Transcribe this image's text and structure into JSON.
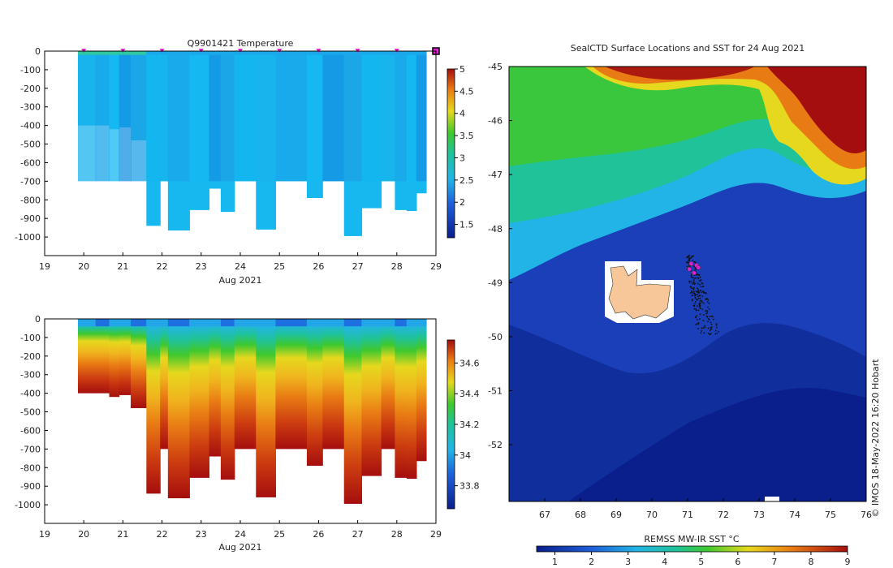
{
  "chart_data": [
    {
      "type": "heatmap",
      "id": "temperature",
      "title": "Q9901421  Temperature",
      "xlabel": "Aug 2021",
      "x_ticks": [
        19,
        20,
        21,
        22,
        23,
        24,
        25,
        26,
        27,
        28,
        29
      ],
      "xlim": [
        19,
        29
      ],
      "y_ticks": [
        0,
        -100,
        -200,
        -300,
        -400,
        -500,
        -600,
        -700,
        -800,
        -900,
        -1000
      ],
      "ylim": [
        -1100,
        0
      ],
      "profile_marker_days": [
        20,
        21,
        22,
        23,
        24,
        25,
        26,
        27,
        28
      ],
      "colorbar": {
        "ticks": [
          "5",
          "4.5",
          "4",
          "3.5",
          "3",
          "2.5",
          "2",
          "1.5"
        ],
        "range": [
          1.2,
          5.0
        ]
      },
      "profiles": [
        {
          "t0": 19.85,
          "t1": 20.3,
          "depth": 400
        },
        {
          "t0": 20.3,
          "t1": 20.65,
          "depth": 400
        },
        {
          "t0": 20.65,
          "t1": 20.9,
          "depth": 420
        },
        {
          "t0": 20.9,
          "t1": 21.2,
          "depth": 410
        },
        {
          "t0": 21.2,
          "t1": 21.6,
          "depth": 480
        },
        {
          "t0": 21.6,
          "t1": 21.95,
          "depth": 940
        },
        {
          "t0": 21.95,
          "t1": 22.15,
          "depth": 700
        },
        {
          "t0": 22.15,
          "t1": 22.7,
          "depth": 965
        },
        {
          "t0": 22.7,
          "t1": 23.2,
          "depth": 855
        },
        {
          "t0": 23.2,
          "t1": 23.5,
          "depth": 740
        },
        {
          "t0": 23.5,
          "t1": 23.85,
          "depth": 865
        },
        {
          "t0": 23.85,
          "t1": 24.4,
          "depth": 700
        },
        {
          "t0": 24.4,
          "t1": 24.9,
          "depth": 960
        },
        {
          "t0": 24.9,
          "t1": 25.7,
          "depth": 700
        },
        {
          "t0": 25.7,
          "t1": 26.1,
          "depth": 790
        },
        {
          "t0": 26.1,
          "t1": 26.65,
          "depth": 700
        },
        {
          "t0": 26.65,
          "t1": 27.1,
          "depth": 995
        },
        {
          "t0": 27.1,
          "t1": 27.6,
          "depth": 845
        },
        {
          "t0": 27.6,
          "t1": 27.95,
          "depth": 700
        },
        {
          "t0": 27.95,
          "t1": 28.25,
          "depth": 855
        },
        {
          "t0": 28.25,
          "t1": 28.5,
          "depth": 860
        },
        {
          "t0": 28.5,
          "t1": 28.75,
          "depth": 765
        }
      ]
    },
    {
      "type": "heatmap",
      "id": "salinity",
      "title": "",
      "xlabel": "Aug 2021",
      "x_ticks": [
        19,
        20,
        21,
        22,
        23,
        24,
        25,
        26,
        27,
        28,
        29
      ],
      "xlim": [
        19,
        29
      ],
      "y_ticks": [
        0,
        -100,
        -200,
        -300,
        -400,
        -500,
        -600,
        -700,
        -800,
        -900,
        -1000
      ],
      "ylim": [
        -1100,
        0
      ],
      "colorbar": {
        "ticks": [
          "34.6",
          "34.4",
          "34.2",
          "34",
          "33.8"
        ],
        "range": [
          33.65,
          34.75
        ]
      }
    },
    {
      "type": "heatmap",
      "id": "sst_map",
      "title": "SealCTD Surface Locations and SST for 24 Aug 2021",
      "x_ticks": [
        67,
        68,
        69,
        70,
        71,
        72,
        73,
        74,
        75,
        76
      ],
      "xlim": [
        66,
        76
      ],
      "y_ticks": [
        -45,
        -46,
        -47,
        -48,
        -49,
        -50,
        -51,
        -52
      ],
      "ylim": [
        -53.05,
        -45
      ],
      "colorbar": {
        "label": "REMSS MW-IR SST °C",
        "ticks": [
          "1",
          "2",
          "3",
          "4",
          "5",
          "6",
          "7",
          "8",
          "9"
        ],
        "range": [
          0.5,
          9.0
        ]
      },
      "credit": "© IMOS 18-May-2022 16:20 Hobart",
      "track_area": {
        "lon": [
          70.8,
          72.0
        ],
        "lat": [
          -48.5,
          -50.0
        ]
      },
      "highlight_points": [
        [
          71.1,
          -48.65
        ],
        [
          71.25,
          -48.68
        ],
        [
          71.05,
          -48.75
        ],
        [
          71.3,
          -48.72
        ],
        [
          71.18,
          -48.82
        ]
      ]
    }
  ]
}
